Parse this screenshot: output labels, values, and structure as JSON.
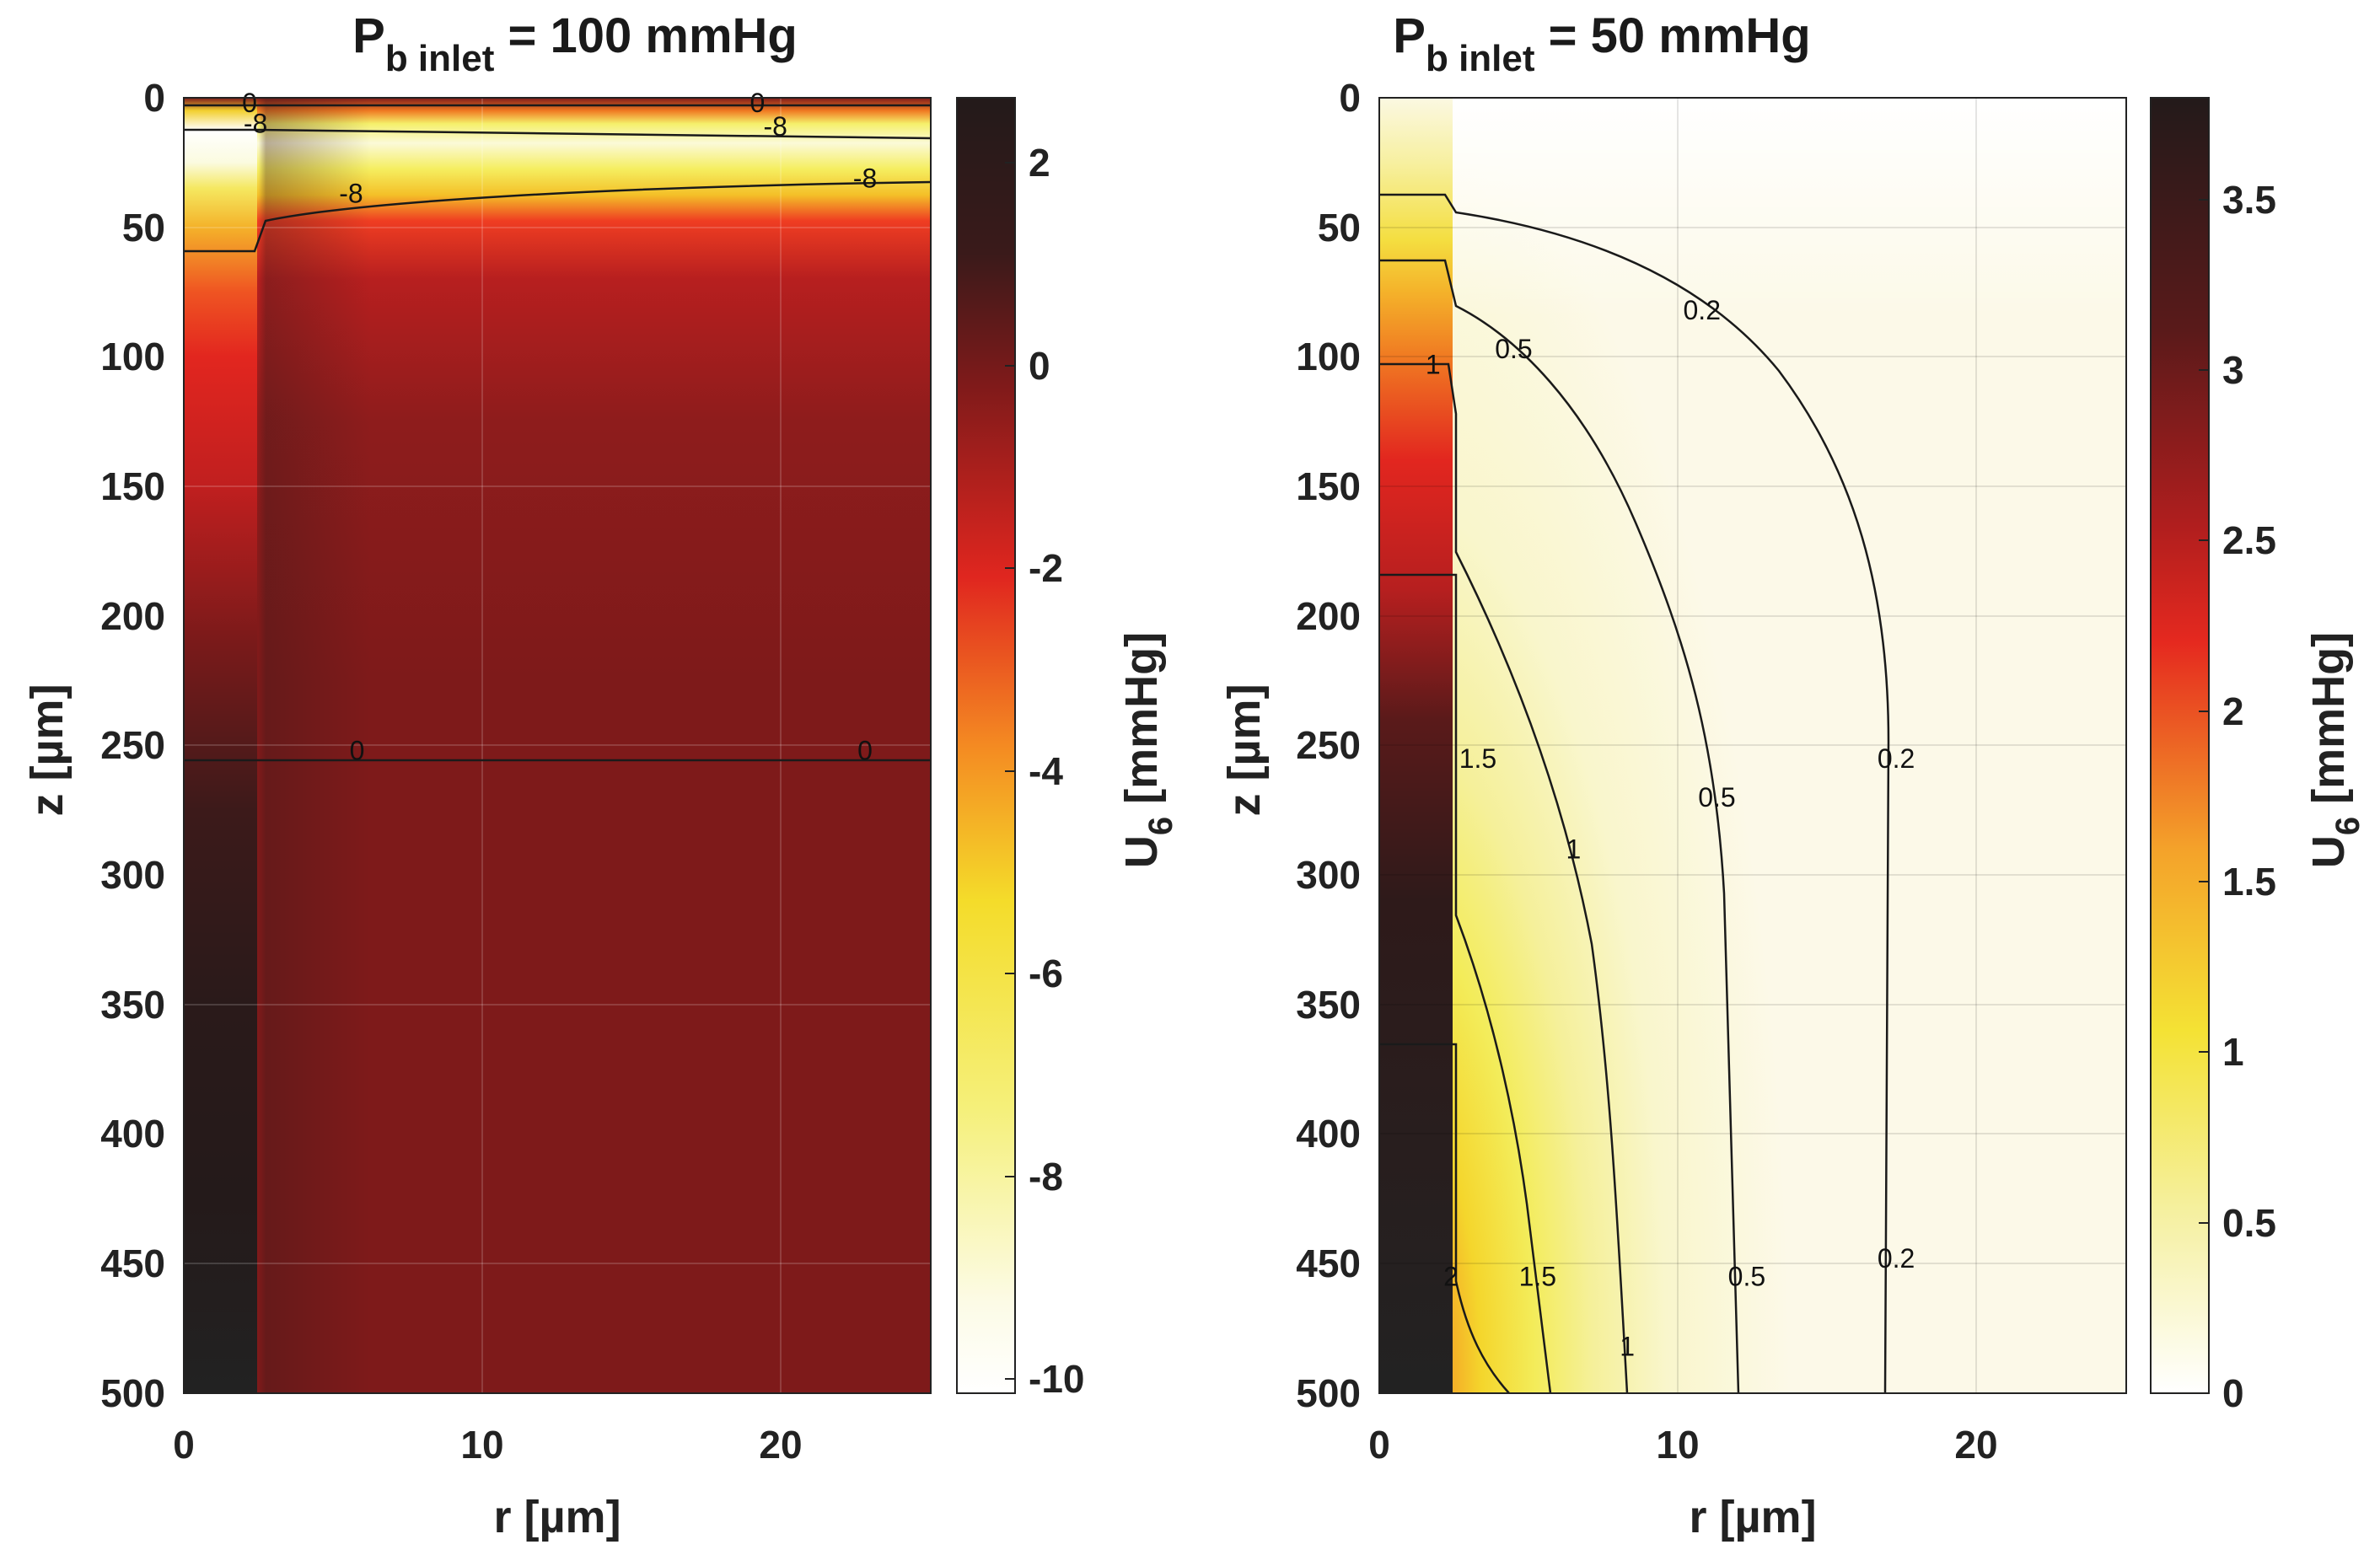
{
  "chart_data": [
    {
      "type": "heatmap",
      "title": {
        "main": "P",
        "sub": "b inlet",
        "rest": " = 100 mmHg"
      },
      "xlabel": "r [µm]",
      "ylabel": "z [µm]",
      "colorbar_label": {
        "main": "U",
        "sub": "6",
        "rest": " [mmHg]"
      },
      "xlim": [
        0,
        25
      ],
      "ylim": [
        500,
        0
      ],
      "xticks": [
        "0",
        "10",
        "20"
      ],
      "yticks": [
        "0",
        "50",
        "100",
        "150",
        "200",
        "250",
        "300",
        "350",
        "400",
        "450",
        "500"
      ],
      "clim": [
        -10.1,
        2.5
      ],
      "cticks": [
        "2",
        "0",
        "-2",
        "-4",
        "-6",
        "-8",
        "-10"
      ],
      "colormap": "hot (reversed)",
      "grid": true,
      "contours": [
        {
          "level": "0",
          "label_positions": [
            [
              2.2,
              2
            ],
            [
              19.2,
              2
            ],
            [
              5.8,
              252
            ],
            [
              22.8,
              252
            ]
          ]
        },
        {
          "level": "-8",
          "label_positions": [
            [
              2.4,
              10
            ],
            [
              19.8,
              11
            ],
            [
              5.6,
              37
            ],
            [
              22.8,
              31
            ]
          ]
        }
      ]
    },
    {
      "type": "heatmap",
      "title": {
        "main": "P",
        "sub": "b inlet",
        "rest": " = 50 mmHg"
      },
      "xlabel": "r [µm]",
      "ylabel": "z [µm]",
      "colorbar_label": {
        "main": "U",
        "sub": "6",
        "rest": " [mmHg]"
      },
      "xlim": [
        0,
        25
      ],
      "ylim": [
        500,
        0
      ],
      "xticks": [
        "0",
        "10",
        "20"
      ],
      "yticks": [
        "0",
        "50",
        "100",
        "150",
        "200",
        "250",
        "300",
        "350",
        "400",
        "450",
        "500"
      ],
      "clim": [
        0,
        3.8
      ],
      "cticks": [
        "3.5",
        "3",
        "2.5",
        "2",
        "1.5",
        "1",
        "0.5",
        "0"
      ],
      "colormap": "hot (reversed)",
      "grid": true,
      "contours": [
        {
          "level": "0.2",
          "label_positions": [
            [
              10.8,
              82
            ],
            [
              17.3,
              255
            ],
            [
              17.3,
              448
            ]
          ]
        },
        {
          "level": "0.5",
          "label_positions": [
            [
              4.5,
              97
            ],
            [
              11.3,
              270
            ],
            [
              12.3,
              455
            ]
          ]
        },
        {
          "level": "1",
          "label_positions": [
            [
              1.8,
              103
            ],
            [
              6.5,
              290
            ],
            [
              8.3,
              482
            ]
          ]
        },
        {
          "level": "1.5",
          "label_positions": [
            [
              3.3,
              255
            ],
            [
              5.3,
              455
            ]
          ]
        },
        {
          "level": "2",
          "label_positions": [
            [
              2.4,
              455
            ]
          ]
        }
      ]
    }
  ]
}
